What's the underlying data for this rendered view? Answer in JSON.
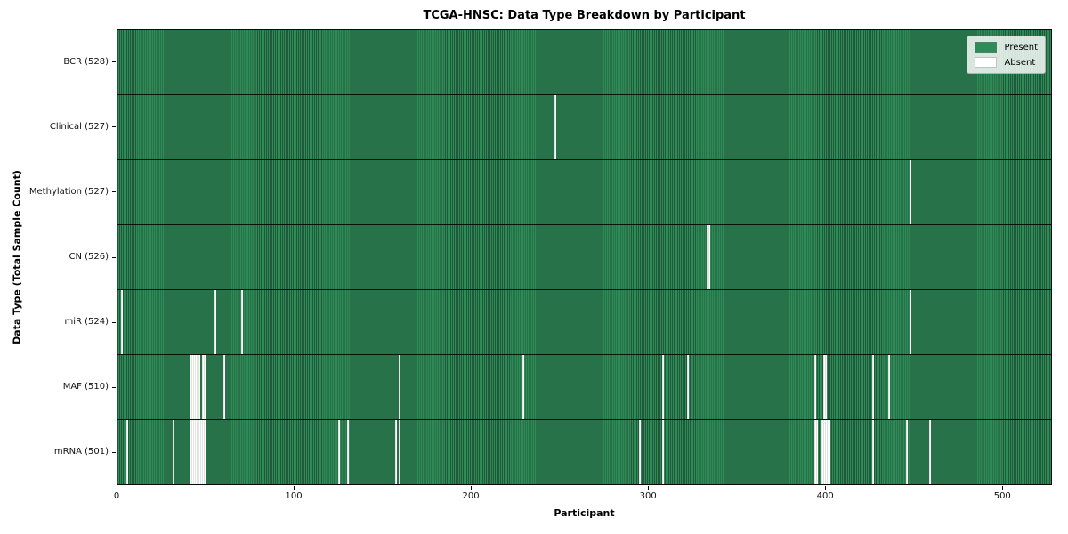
{
  "chart_data": {
    "type": "heatmap",
    "title": "TCGA-HNSC: Data Type Breakdown by Participant",
    "xlabel": "Participant",
    "ylabel": "Data Type (Total Sample Count)",
    "x_ticks": [
      0,
      100,
      200,
      300,
      400,
      500
    ],
    "x_range": [
      0,
      528
    ],
    "n_participants": 528,
    "grid": false,
    "legend_position": "upper right",
    "legend": [
      {
        "label": "Present",
        "color": "#2e8b57"
      },
      {
        "label": "Absent",
        "color": "#ffffff"
      }
    ],
    "colors": {
      "present": "#2e8b57",
      "present_edge": "#20593a",
      "absent": "#ffffff",
      "row_separator": "#0a0a0a"
    },
    "rows": [
      {
        "data_type": "BCR",
        "label": "BCR (528)",
        "total": 528,
        "absent_participants": []
      },
      {
        "data_type": "Clinical",
        "label": "Clinical (527)",
        "total": 527,
        "absent_participants": [
          247
        ]
      },
      {
        "data_type": "Methylation",
        "label": "Methylation (527)",
        "total": 527,
        "absent_participants": [
          448
        ]
      },
      {
        "data_type": "CN",
        "label": "CN (526)",
        "total": 526,
        "absent_participants": [
          333,
          334
        ]
      },
      {
        "data_type": "miR",
        "label": "miR (524)",
        "total": 524,
        "absent_participants": [
          2,
          55,
          70,
          448
        ]
      },
      {
        "data_type": "MAF",
        "label": "MAF (510)",
        "total": 510,
        "absent_participants": [
          41,
          42,
          43,
          44,
          45,
          46,
          48,
          49,
          60,
          159,
          229,
          308,
          322,
          394,
          399,
          400,
          427,
          436
        ]
      },
      {
        "data_type": "mRNA",
        "label": "mRNA (501)",
        "total": 501,
        "absent_participants": [
          5,
          31,
          41,
          42,
          43,
          44,
          45,
          46,
          47,
          48,
          49,
          125,
          130,
          157,
          159,
          295,
          308,
          394,
          395,
          398,
          399,
          400,
          401,
          402,
          427,
          446,
          459
        ]
      }
    ]
  }
}
